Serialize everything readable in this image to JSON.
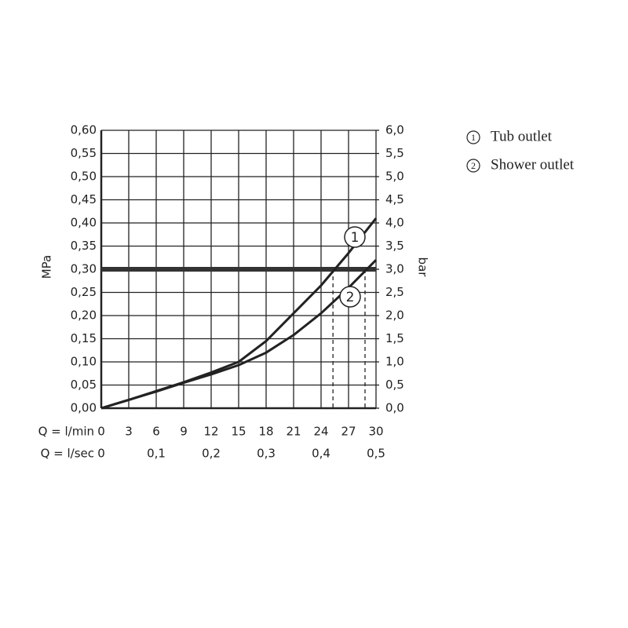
{
  "chart_data": {
    "type": "line",
    "x": [
      0,
      3,
      6,
      9,
      12,
      15,
      18,
      21,
      24,
      27,
      30
    ],
    "series": [
      {
        "name": "Tub outlet",
        "label": "1",
        "color": "#222222",
        "values": [
          0,
          0.018,
          0.037,
          0.056,
          0.077,
          0.1,
          0.145,
          0.205,
          0.265,
          0.335,
          0.41
        ]
      },
      {
        "name": "Shower outlet",
        "label": "2",
        "color": "#222222",
        "values": [
          0,
          0.018,
          0.036,
          0.055,
          0.073,
          0.093,
          0.12,
          0.158,
          0.205,
          0.26,
          0.32
        ]
      }
    ],
    "xlabel": "Q = l/min",
    "x2label": "Q = l/sec",
    "ylabel": "MPa",
    "y2label": "bar",
    "xlim": [
      0,
      30
    ],
    "xticks": [
      0,
      3,
      6,
      9,
      12,
      15,
      18,
      21,
      24,
      27,
      30
    ],
    "x2lim": [
      0,
      0.5
    ],
    "x2ticks": [
      0,
      {
        "value": 0.1,
        "label": "0,1"
      },
      {
        "value": 0.2,
        "label": "0,2"
      },
      {
        "value": 0.3,
        "label": "0,3"
      },
      {
        "value": 0.4,
        "label": "0,4"
      },
      {
        "value": 0.5,
        "label": "0,5"
      }
    ],
    "ylim": [
      0,
      0.6
    ],
    "yticks": [
      {
        "value": 0,
        "label": "0,00"
      },
      {
        "value": 0.05,
        "label": "0,05"
      },
      {
        "value": 0.1,
        "label": "0,10"
      },
      {
        "value": 0.15,
        "label": "0,15"
      },
      {
        "value": 0.2,
        "label": "0,20"
      },
      {
        "value": 0.25,
        "label": "0,25"
      },
      {
        "value": 0.3,
        "label": "0,30"
      },
      {
        "value": 0.35,
        "label": "0,35"
      },
      {
        "value": 0.4,
        "label": "0,40"
      },
      {
        "value": 0.45,
        "label": "0,45"
      },
      {
        "value": 0.5,
        "label": "0,50"
      },
      {
        "value": 0.55,
        "label": "0,55"
      },
      {
        "value": 0.6,
        "label": "0,60"
      }
    ],
    "y2lim": [
      0,
      6
    ],
    "y2ticks": [
      {
        "value": 0,
        "label": "0,0"
      },
      {
        "value": 0.5,
        "label": "0,5"
      },
      {
        "value": 1,
        "label": "1,0"
      },
      {
        "value": 1.5,
        "label": "1,5"
      },
      {
        "value": 2,
        "label": "2,0"
      },
      {
        "value": 2.5,
        "label": "2,5"
      },
      {
        "value": 3,
        "label": "3,0"
      },
      {
        "value": 3.5,
        "label": "3,5"
      },
      {
        "value": 4,
        "label": "4,0"
      },
      {
        "value": 4.5,
        "label": "4,5"
      },
      {
        "value": 5,
        "label": "5,0"
      },
      {
        "value": 5.5,
        "label": "5,5"
      },
      {
        "value": 6,
        "label": "6,0"
      }
    ],
    "threshold": 0.3,
    "dashed_x": [
      25.3,
      28.8
    ],
    "grid": true
  }
}
